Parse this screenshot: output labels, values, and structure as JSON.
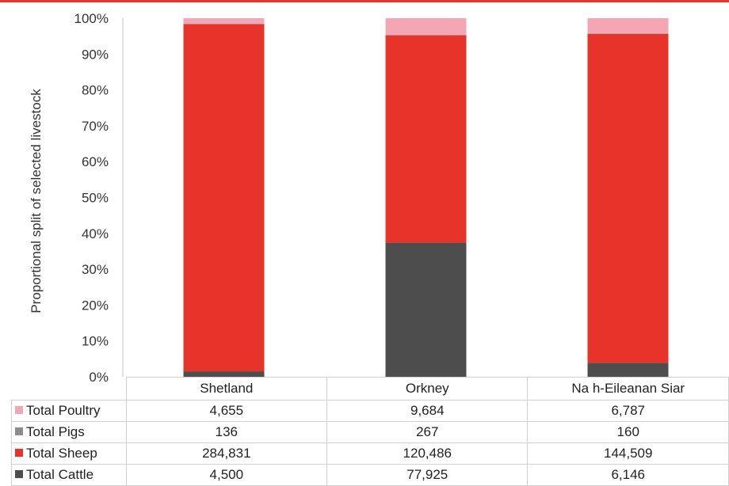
{
  "chart_data": {
    "type": "bar",
    "stacked": "percent",
    "categories": [
      "Shetland",
      "Orkney",
      "Na h-Eileanan Siar"
    ],
    "series": [
      {
        "name": "Total Cattle",
        "values": [
          4500,
          77925,
          6146
        ],
        "color": "#4d4d4d"
      },
      {
        "name": "Total Sheep",
        "values": [
          284831,
          120486,
          144509
        ],
        "color": "#e8332a"
      },
      {
        "name": "Total Pigs",
        "values": [
          136,
          267,
          160
        ],
        "color": "#8c8c8c"
      },
      {
        "name": "Total Poultry",
        "values": [
          4655,
          9684,
          6787
        ],
        "color": "#f4a6b5"
      }
    ],
    "table_series_order": [
      "Total Poultry",
      "Total Pigs",
      "Total Sheep",
      "Total Cattle"
    ],
    "table_values": {
      "Total Poultry": [
        "4,655",
        "9,684",
        "6,787"
      ],
      "Total Pigs": [
        "136",
        "267",
        "160"
      ],
      "Total Sheep": [
        "284,831",
        "120,486",
        "144,509"
      ],
      "Total Cattle": [
        "4,500",
        "77,925",
        "6,146"
      ]
    },
    "ylabel": "Proportional split of selected livestock",
    "yticks": [
      "0%",
      "10%",
      "20%",
      "30%",
      "40%",
      "50%",
      "60%",
      "70%",
      "80%",
      "90%",
      "100%"
    ],
    "ylim": [
      0,
      1
    ],
    "grid": false,
    "legend": "data-table"
  }
}
